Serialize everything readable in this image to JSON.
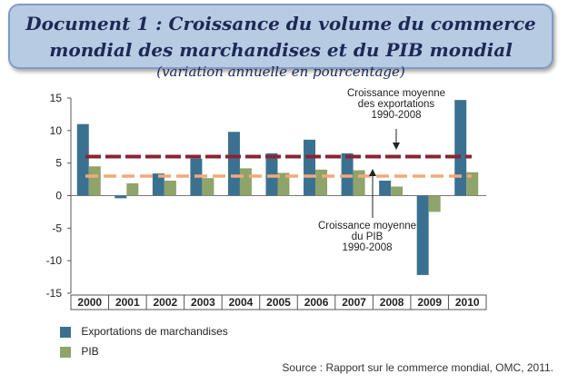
{
  "title": {
    "main": "Document 1 : Croissance du volume du commerce mondial des marchandises et du PIB mondial",
    "sub": "(variation annuelle en pourcentage)"
  },
  "chart_data": {
    "type": "bar",
    "categories": [
      "2000",
      "2001",
      "2002",
      "2003",
      "2004",
      "2005",
      "2006",
      "2007",
      "2008",
      "2009",
      "2010"
    ],
    "series": [
      {
        "name": "Exportations de marchandises",
        "color": "#3b7190",
        "values": [
          11,
          -0.4,
          3.4,
          5.7,
          9.8,
          6.5,
          8.6,
          6.5,
          2.3,
          -12.2,
          14.7
        ]
      },
      {
        "name": "PIB",
        "color": "#8ea46b",
        "values": [
          4.5,
          1.9,
          2.3,
          2.7,
          4.2,
          3.5,
          4.0,
          3.9,
          1.4,
          -2.5,
          3.6
        ]
      }
    ],
    "reference_lines": [
      {
        "value": 6,
        "color": "#8b2333",
        "style": "dashed"
      },
      {
        "value": 3,
        "color": "#f2a97a",
        "style": "dashed"
      }
    ],
    "annotations": [
      {
        "lines": [
          "Croissance moyenne",
          "des exportations",
          "1990-2008"
        ]
      },
      {
        "lines": [
          "Croissance moyenne",
          "du PIB",
          "1990-2008"
        ]
      }
    ],
    "ylim": [
      -15,
      15
    ],
    "yticks": [
      15,
      10,
      5,
      0,
      -5,
      -10,
      -15
    ],
    "xlabel": "",
    "ylabel": "",
    "grid": false,
    "legend_position": "bottom-left"
  },
  "legend": {
    "exports_label": "Exportations de marchandises",
    "pib_label": "PIB",
    "exports_color": "#3b7190",
    "pib_color": "#8ea46b"
  },
  "source": "Source : Rapport sur le commerce mondial, OMC, 2011."
}
